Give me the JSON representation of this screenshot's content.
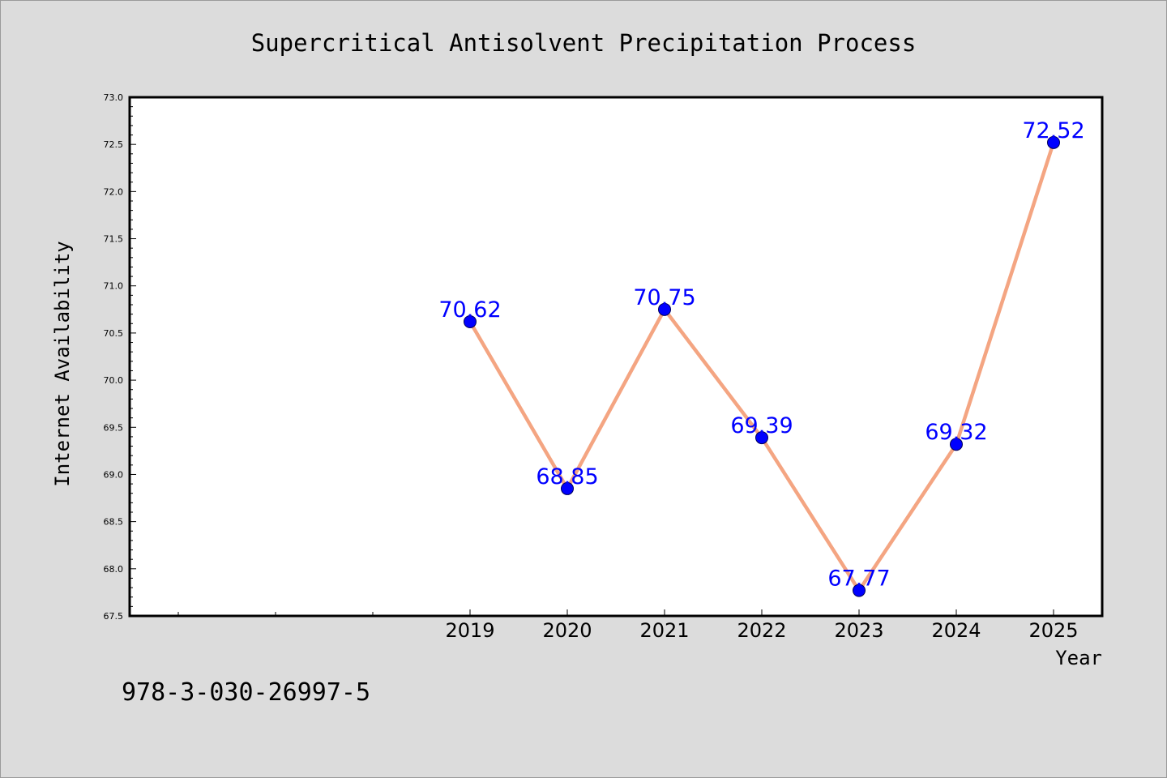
{
  "chart_data": {
    "type": "line",
    "title": "Supercritical Antisolvent Precipitation Process",
    "xlabel": "Year",
    "ylabel": "Internet Availability",
    "categories": [
      "2019",
      "2020",
      "2021",
      "2022",
      "2023",
      "2024",
      "2025"
    ],
    "series": [
      {
        "values": [
          70.62,
          68.85,
          70.75,
          69.39,
          67.77,
          69.32,
          72.52
        ]
      }
    ],
    "data_labels": [
      "70.62",
      "68.85",
      "70.75",
      "69.39",
      "67.77",
      "69.32",
      "72.52"
    ],
    "ylim": [
      67.5,
      73.0
    ],
    "yticks": [
      "67.5",
      "68.0",
      "68.5",
      "69.0",
      "69.5",
      "70.0",
      "70.5",
      "71.0",
      "71.5",
      "72.0",
      "72.5",
      "73.0"
    ],
    "grid": false,
    "legend": "none",
    "colors": {
      "line": "#f4a582",
      "marker": "#0000ff",
      "label": "#0000ff",
      "background": "#dcdcdc",
      "plot_background": "#ffffff"
    }
  },
  "footer": {
    "isbn": "978-3-030-26997-5"
  }
}
